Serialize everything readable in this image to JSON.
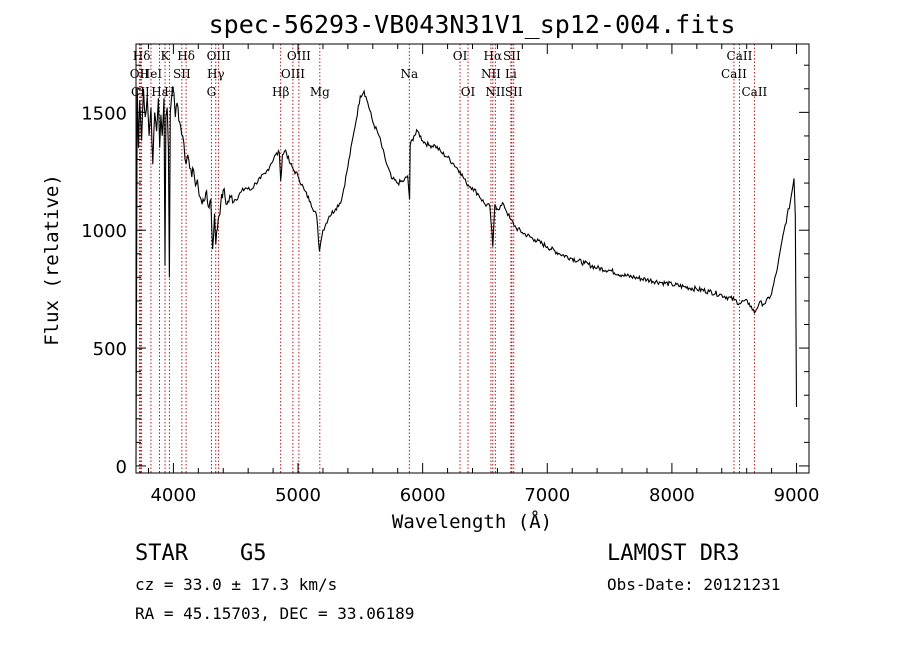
{
  "chart_data": {
    "type": "line",
    "title": "spec-56293-VB043N31V1_sp12-004.fits",
    "xlabel": "Wavelength (Å)",
    "ylabel": "Flux (relative)",
    "xlim": [
      3700,
      9100
    ],
    "ylim": [
      -30,
      1790
    ],
    "x_ticks": [
      4000,
      5000,
      6000,
      7000,
      8000,
      9000
    ],
    "x_tick_labels": [
      "4000",
      "5000",
      "6000",
      "7000",
      "8000",
      "9000"
    ],
    "y_ticks": [
      0,
      500,
      1000,
      1500
    ],
    "y_tick_labels": [
      "0",
      "500",
      "1000",
      "1500"
    ],
    "series": [
      {
        "name": "flux",
        "color": "#000000",
        "points": [
          [
            3700,
            10
          ],
          [
            3710,
            1600
          ],
          [
            3720,
            1350
          ],
          [
            3730,
            1550
          ],
          [
            3745,
            1380
          ],
          [
            3760,
            1600
          ],
          [
            3775,
            1480
          ],
          [
            3790,
            1570
          ],
          [
            3805,
            1400
          ],
          [
            3820,
            1520
          ],
          [
            3835,
            1280
          ],
          [
            3850,
            1500
          ],
          [
            3865,
            1420
          ],
          [
            3880,
            1560
          ],
          [
            3890,
            1350
          ],
          [
            3900,
            1490
          ],
          [
            3910,
            1400
          ],
          [
            3925,
            1560
          ],
          [
            3933,
            850
          ],
          [
            3940,
            1480
          ],
          [
            3950,
            1520
          ],
          [
            3960,
            1350
          ],
          [
            3968,
            800
          ],
          [
            3975,
            1500
          ],
          [
            3985,
            1560
          ],
          [
            3995,
            1610
          ],
          [
            4005,
            1580
          ],
          [
            4015,
            1480
          ],
          [
            4030,
            1540
          ],
          [
            4050,
            1460
          ],
          [
            4075,
            1400
          ],
          [
            4102,
            1280
          ],
          [
            4115,
            1320
          ],
          [
            4140,
            1260
          ],
          [
            4170,
            1220
          ],
          [
            4200,
            1180
          ],
          [
            4230,
            1110
          ],
          [
            4260,
            1160
          ],
          [
            4280,
            1100
          ],
          [
            4300,
            1130
          ],
          [
            4315,
            920
          ],
          [
            4330,
            1070
          ],
          [
            4340,
            940
          ],
          [
            4360,
            1050
          ],
          [
            4380,
            1110
          ],
          [
            4400,
            1170
          ],
          [
            4430,
            1110
          ],
          [
            4460,
            1140
          ],
          [
            4500,
            1130
          ],
          [
            4540,
            1160
          ],
          [
            4580,
            1180
          ],
          [
            4620,
            1170
          ],
          [
            4660,
            1200
          ],
          [
            4700,
            1220
          ],
          [
            4740,
            1240
          ],
          [
            4780,
            1280
          ],
          [
            4820,
            1320
          ],
          [
            4850,
            1330
          ],
          [
            4861,
            1210
          ],
          [
            4875,
            1320
          ],
          [
            4900,
            1340
          ],
          [
            4930,
            1290
          ],
          [
            4960,
            1260
          ],
          [
            5000,
            1230
          ],
          [
            5050,
            1170
          ],
          [
            5100,
            1120
          ],
          [
            5150,
            1060
          ],
          [
            5172,
            910
          ],
          [
            5183,
            950
          ],
          [
            5200,
            1000
          ],
          [
            5250,
            1060
          ],
          [
            5300,
            1090
          ],
          [
            5350,
            1130
          ],
          [
            5400,
            1270
          ],
          [
            5450,
            1420
          ],
          [
            5500,
            1570
          ],
          [
            5530,
            1590
          ],
          [
            5560,
            1540
          ],
          [
            5600,
            1460
          ],
          [
            5650,
            1400
          ],
          [
            5700,
            1300
          ],
          [
            5750,
            1220
          ],
          [
            5800,
            1200
          ],
          [
            5850,
            1210
          ],
          [
            5880,
            1230
          ],
          [
            5895,
            1130
          ],
          [
            5900,
            1360
          ],
          [
            5930,
            1400
          ],
          [
            5960,
            1420
          ],
          [
            6000,
            1380
          ],
          [
            6050,
            1360
          ],
          [
            6100,
            1360
          ],
          [
            6150,
            1330
          ],
          [
            6200,
            1310
          ],
          [
            6250,
            1280
          ],
          [
            6300,
            1250
          ],
          [
            6350,
            1200
          ],
          [
            6400,
            1180
          ],
          [
            6450,
            1150
          ],
          [
            6500,
            1110
          ],
          [
            6540,
            1100
          ],
          [
            6563,
            930
          ],
          [
            6580,
            1110
          ],
          [
            6600,
            1090
          ],
          [
            6650,
            1110
          ],
          [
            6700,
            1050
          ],
          [
            6750,
            1010
          ],
          [
            6800,
            990
          ],
          [
            6900,
            960
          ],
          [
            7000,
            930
          ],
          [
            7100,
            900
          ],
          [
            7200,
            880
          ],
          [
            7300,
            860
          ],
          [
            7400,
            840
          ],
          [
            7500,
            830
          ],
          [
            7600,
            810
          ],
          [
            7700,
            800
          ],
          [
            7800,
            790
          ],
          [
            7900,
            780
          ],
          [
            8000,
            770
          ],
          [
            8100,
            760
          ],
          [
            8200,
            750
          ],
          [
            8300,
            740
          ],
          [
            8400,
            725
          ],
          [
            8500,
            705
          ],
          [
            8542,
            690
          ],
          [
            8580,
            700
          ],
          [
            8620,
            690
          ],
          [
            8662,
            650
          ],
          [
            8700,
            690
          ],
          [
            8750,
            690
          ],
          [
            8800,
            730
          ],
          [
            8850,
            850
          ],
          [
            8900,
            1000
          ],
          [
            8950,
            1120
          ],
          [
            8980,
            1220
          ],
          [
            8990,
            1060
          ],
          [
            9000,
            250
          ]
        ]
      }
    ],
    "spectral_lines": [
      {
        "label": "Hδ",
        "wavelength": 3745,
        "row": 0
      },
      {
        "label": "OII",
        "wavelength": 3727,
        "row": 1
      },
      {
        "label": "CII",
        "wavelength": 3735,
        "row": 2
      },
      {
        "label": "HeI",
        "wavelength": 3820,
        "row": 1
      },
      {
        "label": "Hε",
        "wavelength": 3889,
        "row": 2
      },
      {
        "label": "K",
        "wavelength": 3933,
        "row": 0
      },
      {
        "label": "H",
        "wavelength": 3968,
        "row": 2
      },
      {
        "label": "SII",
        "wavelength": 4068,
        "row": 1
      },
      {
        "label": "Hδ",
        "wavelength": 4102,
        "row": 0
      },
      {
        "label": "OIII",
        "wavelength": 4363,
        "row": 0
      },
      {
        "label": "Hγ",
        "wavelength": 4340,
        "row": 1
      },
      {
        "label": "G",
        "wavelength": 4305,
        "row": 2
      },
      {
        "label": "OIII",
        "wavelength": 5007,
        "row": 0
      },
      {
        "label": "OIII",
        "wavelength": 4959,
        "row": 1
      },
      {
        "label": "Hβ",
        "wavelength": 4861,
        "row": 2
      },
      {
        "label": "Mg",
        "wavelength": 5175,
        "row": 2
      },
      {
        "label": "Na",
        "wavelength": 5893,
        "row": 1
      },
      {
        "label": "OI",
        "wavelength": 6300,
        "row": 0
      },
      {
        "label": "OI",
        "wavelength": 6364,
        "row": 2
      },
      {
        "label": "Hα",
        "wavelength": 6563,
        "row": 0
      },
      {
        "label": "NII",
        "wavelength": 6548,
        "row": 1
      },
      {
        "label": "NII",
        "wavelength": 6583,
        "row": 2
      },
      {
        "label": "SII",
        "wavelength": 6716,
        "row": 0
      },
      {
        "label": "Li",
        "wavelength": 6708,
        "row": 1
      },
      {
        "label": "SII",
        "wavelength": 6731,
        "row": 2
      },
      {
        "label": "CaII",
        "wavelength": 8542,
        "row": 0
      },
      {
        "label": "CaII",
        "wavelength": 8498,
        "row": 1
      },
      {
        "label": "CaII",
        "wavelength": 8662,
        "row": 2
      }
    ]
  },
  "info": {
    "object_class": "STAR",
    "subclass": "G5",
    "survey": "LAMOST DR3",
    "cz": "cz = 33.0 ± 17.3 km/s",
    "obs_date": "Obs-Date: 20121231",
    "coords": "RA =  45.15703, DEC =  33.06189"
  },
  "colors": {
    "line": "#000000",
    "marker": "#b00000"
  }
}
